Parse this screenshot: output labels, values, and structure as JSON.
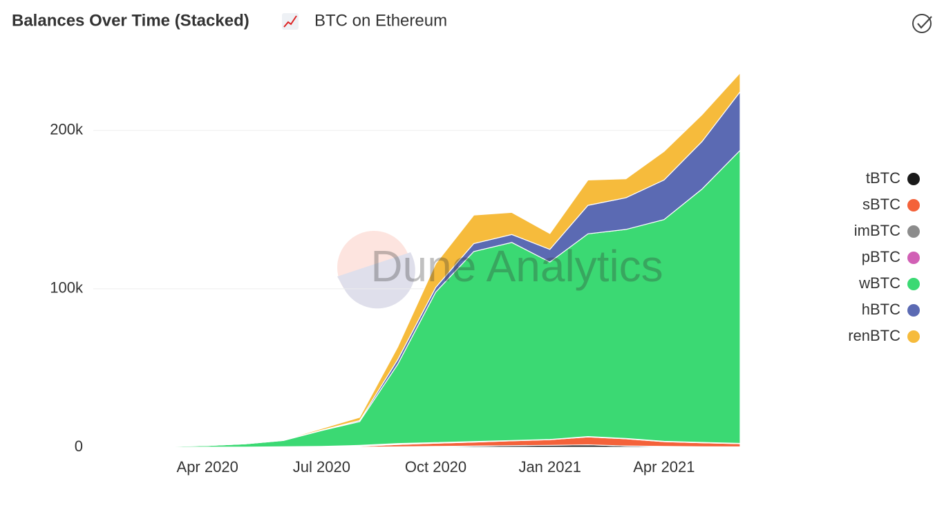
{
  "chart_data": {
    "type": "stacked_area",
    "title": "Balances Over Time (Stacked)",
    "subtitle": "BTC on Ethereum",
    "watermark": "Dune Analytics",
    "x": [
      "2020-01",
      "2020-02",
      "2020-03",
      "2020-04",
      "2020-05",
      "2020-06",
      "2020-07",
      "2020-08",
      "2020-09",
      "2020-10",
      "2020-11",
      "2020-12",
      "2021-01",
      "2021-02",
      "2021-03",
      "2021-04",
      "2021-05",
      "2021-06"
    ],
    "xlim": [
      "2020-01",
      "2021-06"
    ],
    "xticks": [
      {
        "value": "2020-04",
        "label": "Apr 2020"
      },
      {
        "value": "2020-07",
        "label": "Jul 2020"
      },
      {
        "value": "2020-10",
        "label": "Oct 2020"
      },
      {
        "value": "2021-01",
        "label": "Jan 2021"
      },
      {
        "value": "2021-04",
        "label": "Apr 2021"
      }
    ],
    "ylim": [
      0,
      240000
    ],
    "yticks": [
      0,
      {
        "value": 100000,
        "label": "100k"
      },
      {
        "value": 200000,
        "label": "200k"
      }
    ],
    "grid": true,
    "legend": "right",
    "series": [
      {
        "name": "tBTC",
        "color": "#1a1a1a",
        "values": [
          0,
          0,
          0,
          0,
          0,
          0,
          0,
          50,
          200,
          500,
          700,
          1000,
          1200,
          1500,
          800,
          500,
          300,
          200
        ]
      },
      {
        "name": "sBTC",
        "color": "#f4623a",
        "values": [
          0,
          0,
          0,
          0,
          0,
          0,
          100,
          500,
          1500,
          2000,
          2500,
          3000,
          3500,
          5000,
          4500,
          3000,
          2500,
          2000
        ]
      },
      {
        "name": "imBTC",
        "color": "#8c8c8c",
        "values": [
          0,
          0,
          0,
          50,
          100,
          200,
          300,
          400,
          300,
          200,
          200,
          150,
          100,
          100,
          100,
          100,
          100,
          100
        ]
      },
      {
        "name": "pBTC",
        "color": "#d160b5",
        "values": [
          0,
          0,
          0,
          0,
          0,
          50,
          100,
          200,
          300,
          200,
          150,
          100,
          100,
          100,
          100,
          100,
          100,
          100
        ]
      },
      {
        "name": "wBTC",
        "color": "#3bd973",
        "values": [
          0,
          200,
          500,
          1000,
          2000,
          4000,
          10000,
          15000,
          50000,
          95000,
          120000,
          125000,
          112000,
          128000,
          132000,
          140000,
          160000,
          185000
        ]
      },
      {
        "name": "hBTC",
        "color": "#5b6ab3",
        "values": [
          0,
          0,
          0,
          0,
          0,
          100,
          300,
          700,
          3000,
          3000,
          5000,
          5000,
          8000,
          18000,
          20000,
          25000,
          30000,
          37000
        ]
      },
      {
        "name": "renBTC",
        "color": "#f6bb3c",
        "values": [
          0,
          0,
          0,
          0,
          100,
          300,
          1000,
          2000,
          8000,
          15000,
          18000,
          14000,
          10000,
          16000,
          12000,
          18000,
          17000,
          12000
        ]
      }
    ]
  }
}
